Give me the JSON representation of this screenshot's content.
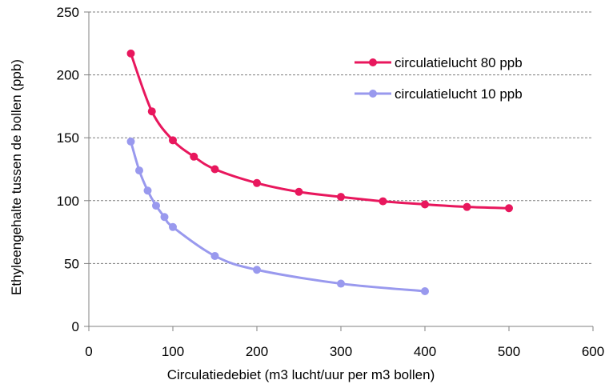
{
  "chart_data": {
    "type": "line",
    "title": "",
    "xlabel": "Circulatiedebiet (m3 lucht/uur per m3 bollen)",
    "ylabel": "Ethyleengehalte tussen de bollen (ppb)",
    "xlim": [
      0,
      600
    ],
    "ylim": [
      0,
      250
    ],
    "x_ticks": [
      0,
      100,
      200,
      300,
      400,
      500,
      600
    ],
    "y_ticks": [
      0,
      50,
      100,
      150,
      200,
      250
    ],
    "x_tick_labels": [
      "0",
      "100",
      "200",
      "300",
      "400",
      "500",
      "600"
    ],
    "y_tick_labels": [
      "0",
      "50",
      "100",
      "150",
      "200",
      "250"
    ],
    "grid": "horizontal dashed",
    "legend_position": "top-right",
    "series": [
      {
        "name": "circulatielucht 80 ppb",
        "color": "#e8175d",
        "x": [
          50,
          75,
          100,
          125,
          150,
          200,
          250,
          300,
          350,
          400,
          450,
          500
        ],
        "y": [
          217,
          171,
          148,
          135,
          125,
          114,
          107,
          103,
          99.5,
          97,
          95,
          94
        ]
      },
      {
        "name": "circulatielucht 10 ppb",
        "color": "#9999ee",
        "x": [
          50,
          60,
          70,
          80,
          90,
          100,
          150,
          200,
          300,
          400
        ],
        "y": [
          147,
          124,
          108,
          96,
          87,
          79,
          56,
          45,
          34,
          28
        ]
      }
    ]
  }
}
